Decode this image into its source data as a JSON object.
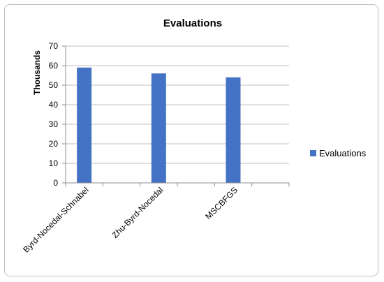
{
  "chart_data": {
    "type": "bar",
    "title": "Evaluations",
    "ylabel": "Thousands",
    "xlabel": "",
    "categories": [
      "Byrd-Nocedal-Schnabel",
      "Zhu-Byrd-Nocedal",
      "MSCBFGS"
    ],
    "series": [
      {
        "name": "Evaluations",
        "values": [
          59,
          56,
          54
        ],
        "color": "#4472c4"
      }
    ],
    "ylim": [
      0,
      70
    ],
    "yticks": [
      0,
      10,
      20,
      30,
      40,
      50,
      60,
      70
    ],
    "grid": true,
    "legend_position": "right"
  }
}
